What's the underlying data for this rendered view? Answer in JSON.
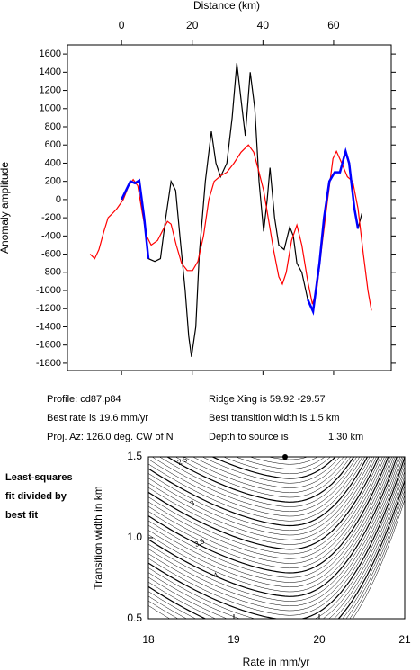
{
  "chart_data": [
    {
      "type": "line",
      "x_label": "Distance (km)",
      "y_label": "Anomaly amplitude",
      "xlim": [
        -15.3,
        76.3
      ],
      "xticks": [
        0,
        20,
        40,
        60
      ],
      "ylim": [
        -1880,
        1700
      ],
      "yticks": [
        -1800,
        -1600,
        -1400,
        -1200,
        -1000,
        -800,
        -600,
        -400,
        -200,
        0,
        200,
        400,
        600,
        800,
        1000,
        1200,
        1400,
        1600
      ],
      "series": [
        {
          "color": "#000000",
          "x": [
            0,
            2.5,
            3.8,
            5,
            6.4,
            7.6,
            9.4,
            11,
            12.5,
            14,
            15.3,
            16.5,
            18,
            19,
            19.8,
            21,
            22,
            23.7,
            25.4,
            26.7,
            28,
            29.8,
            31.3,
            32.6,
            33.8,
            35,
            36.4,
            37.7,
            38.9,
            40.2,
            41.2,
            42,
            43.3,
            44.5,
            46,
            47.6,
            48.6,
            49.6,
            51,
            52.7,
            54.2,
            56,
            57.3,
            58.8,
            60.3,
            61.8,
            63.4,
            64.4,
            65.9,
            66.9,
            68
          ],
          "values": [
            0,
            200,
            180,
            210,
            -200,
            -650,
            -680,
            -650,
            -200,
            200,
            100,
            -400,
            -1000,
            -1500,
            -1730,
            -1400,
            -600,
            200,
            750,
            400,
            250,
            400,
            900,
            1500,
            1100,
            700,
            1400,
            1000,
            200,
            -350,
            0,
            350,
            -200,
            -500,
            -550,
            -300,
            -400,
            -700,
            -800,
            -1100,
            -1230,
            -700,
            -200,
            200,
            300,
            300,
            530,
            400,
            -100,
            -320,
            -150
          ]
        },
        {
          "color": "#ff0000",
          "x": [
            -8.9,
            -7.6,
            -6.4,
            -5,
            -3.8,
            -2.5,
            -1.3,
            0.5,
            2,
            3.3,
            4.6,
            5.9,
            7.1,
            8.4,
            10.2,
            11.5,
            13,
            14,
            15.5,
            17,
            18.6,
            20.1,
            21.6,
            23.2,
            24.7,
            26.2,
            28,
            29.8,
            31.8,
            33.8,
            35.9,
            37.4,
            38.9,
            40.2,
            41.5,
            43,
            44.5,
            45.5,
            46.6,
            48.1,
            49.6,
            51,
            52.7,
            54,
            55.2,
            56.7,
            58.3,
            59.8,
            60.8,
            62.3,
            63.9,
            65.4,
            66.9,
            68.4,
            69.7,
            70.7
          ],
          "values": [
            -600,
            -650,
            -550,
            -350,
            -200,
            -150,
            -100,
            0,
            150,
            220,
            150,
            -150,
            -400,
            -500,
            -450,
            -350,
            -240,
            -270,
            -500,
            -700,
            -780,
            -780,
            -680,
            -400,
            0,
            200,
            260,
            300,
            400,
            520,
            600,
            520,
            300,
            100,
            -200,
            -550,
            -850,
            -930,
            -800,
            -450,
            -280,
            -500,
            -900,
            -1150,
            -1000,
            -500,
            0,
            450,
            530,
            400,
            250,
            200,
            -100,
            -600,
            -1000,
            -1220
          ]
        },
        {
          "color": "#0000ff",
          "x": [
            0,
            2.5,
            3.8,
            5,
            6.4,
            7.6,
            30,
            52.7,
            54.2,
            56,
            57.3,
            58.8,
            60.3,
            61.8,
            63.4,
            64.4,
            65.9,
            66.9
          ],
          "values": [
            0,
            200,
            180,
            210,
            -200,
            -650,
            null,
            -1100,
            -1230,
            -700,
            -200,
            200,
            300,
            300,
            530,
            400,
            -100,
            -320
          ]
        }
      ]
    },
    {
      "type": "contour",
      "x_label": "Rate in mm/yr",
      "y_label": "Transition width in km",
      "xlim": [
        18,
        21
      ],
      "xticks": [
        18,
        19,
        20,
        21
      ],
      "ylim": [
        0.5,
        1.5
      ],
      "yticks": [
        {
          "value": 0.5,
          "label": "0.5"
        },
        {
          "value": 1.0,
          "label": "1.0"
        },
        {
          "value": 1.5,
          "label": "1.5"
        }
      ],
      "contour_levels": [
        2.5,
        3,
        3.5,
        4
      ],
      "best": [
        19.6,
        1.5
      ],
      "side_label": [
        "Least-squares",
        "fit divided by",
        "best fit"
      ]
    }
  ],
  "info": {
    "profile": "Profile: cd87.p84",
    "ridge": "Ridge Xing is 59.92 -29.57",
    "rate": "Best rate is 19.6 mm/yr",
    "width": "Best transition width is 1.5 km",
    "azimuth": "Proj. Az: 126.0 deg. CW of N",
    "depth": "Depth to source is",
    "depth_value": "1.30 km"
  }
}
